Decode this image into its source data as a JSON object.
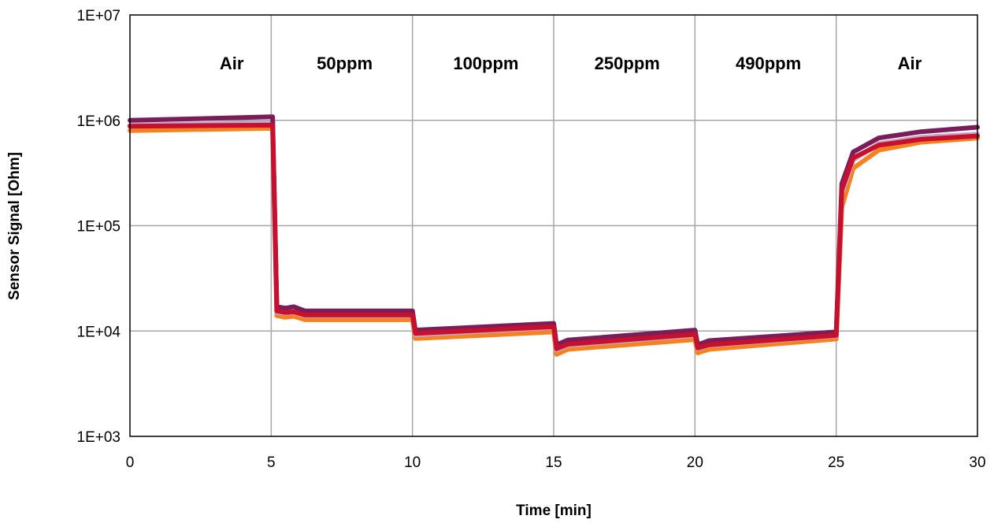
{
  "chart_data": {
    "type": "line",
    "xlabel": "Time [min]",
    "ylabel": "Sensor Signal [Ohm]",
    "y_scale": "log",
    "xlim": [
      0,
      30
    ],
    "ylim": [
      1000,
      10000000
    ],
    "x_ticks": [
      0,
      5,
      10,
      15,
      20,
      25,
      30
    ],
    "x_tick_labels": [
      "0",
      "5",
      "10",
      "15",
      "20",
      "25",
      "30"
    ],
    "y_ticks": [
      1000,
      10000,
      100000,
      1000000,
      10000000
    ],
    "y_tick_labels": [
      "1E+03",
      "1E+04",
      "1E+05",
      "1E+06",
      "1E+07"
    ],
    "grid": true,
    "legend": "none",
    "annotations": [
      {
        "text": "Air",
        "x": 3.6
      },
      {
        "text": "50ppm",
        "x": 7.6
      },
      {
        "text": "100ppm",
        "x": 12.6
      },
      {
        "text": "250ppm",
        "x": 17.6
      },
      {
        "text": "490ppm",
        "x": 22.6
      },
      {
        "text": "Air",
        "x": 27.6
      }
    ],
    "series": [
      {
        "color": "#f58220",
        "points": [
          [
            0,
            800000
          ],
          [
            5.05,
            840000
          ],
          [
            5.2,
            14000
          ],
          [
            5.5,
            13500
          ],
          [
            5.8,
            13800
          ],
          [
            6.2,
            12800
          ],
          [
            10.0,
            12800
          ],
          [
            10.1,
            8500
          ],
          [
            15.0,
            9800
          ],
          [
            15.1,
            6000
          ],
          [
            15.5,
            6700
          ],
          [
            20.0,
            8300
          ],
          [
            20.1,
            6200
          ],
          [
            20.5,
            6700
          ],
          [
            25.0,
            8400
          ],
          [
            25.2,
            150000
          ],
          [
            25.6,
            350000
          ],
          [
            26.5,
            520000
          ],
          [
            28,
            620000
          ],
          [
            30,
            680000
          ]
        ]
      },
      {
        "color": "#bfa8c8",
        "points": [
          [
            0,
            900000
          ],
          [
            5.05,
            950000
          ],
          [
            5.2,
            15000
          ],
          [
            5.5,
            14800
          ],
          [
            5.8,
            15000
          ],
          [
            6.2,
            14000
          ],
          [
            10.0,
            14000
          ],
          [
            10.1,
            9200
          ],
          [
            15.0,
            10800
          ],
          [
            15.1,
            6600
          ],
          [
            15.5,
            7300
          ],
          [
            20.0,
            9100
          ],
          [
            20.1,
            6800
          ],
          [
            20.5,
            7300
          ],
          [
            25.0,
            9000
          ],
          [
            25.2,
            200000
          ],
          [
            25.6,
            420000
          ],
          [
            26.5,
            600000
          ],
          [
            28,
            690000
          ],
          [
            30,
            740000
          ]
        ]
      },
      {
        "color": "#7a1e5a",
        "points": [
          [
            0,
            1000000
          ],
          [
            5.05,
            1080000
          ],
          [
            5.2,
            17000
          ],
          [
            5.5,
            16500
          ],
          [
            5.8,
            17000
          ],
          [
            6.2,
            15500
          ],
          [
            10.0,
            15500
          ],
          [
            10.1,
            10200
          ],
          [
            15.0,
            11800
          ],
          [
            15.1,
            7400
          ],
          [
            15.5,
            8200
          ],
          [
            20.0,
            10200
          ],
          [
            20.1,
            7400
          ],
          [
            20.5,
            8100
          ],
          [
            25.0,
            9800
          ],
          [
            25.2,
            250000
          ],
          [
            25.6,
            500000
          ],
          [
            26.5,
            680000
          ],
          [
            28,
            780000
          ],
          [
            30,
            860000
          ]
        ]
      },
      {
        "color": "#c8102e",
        "points": [
          [
            0,
            880000
          ],
          [
            5.05,
            900000
          ],
          [
            5.2,
            15500
          ],
          [
            5.5,
            15000
          ],
          [
            5.8,
            15200
          ],
          [
            6.2,
            14200
          ],
          [
            10.0,
            14200
          ],
          [
            10.1,
            9500
          ],
          [
            15.0,
            11000
          ],
          [
            15.1,
            6800
          ],
          [
            15.5,
            7500
          ],
          [
            20.0,
            9300
          ],
          [
            20.1,
            6900
          ],
          [
            20.5,
            7400
          ],
          [
            25.0,
            9100
          ],
          [
            25.2,
            220000
          ],
          [
            25.6,
            440000
          ],
          [
            26.5,
            580000
          ],
          [
            28,
            660000
          ],
          [
            30,
            710000
          ]
        ]
      }
    ]
  }
}
